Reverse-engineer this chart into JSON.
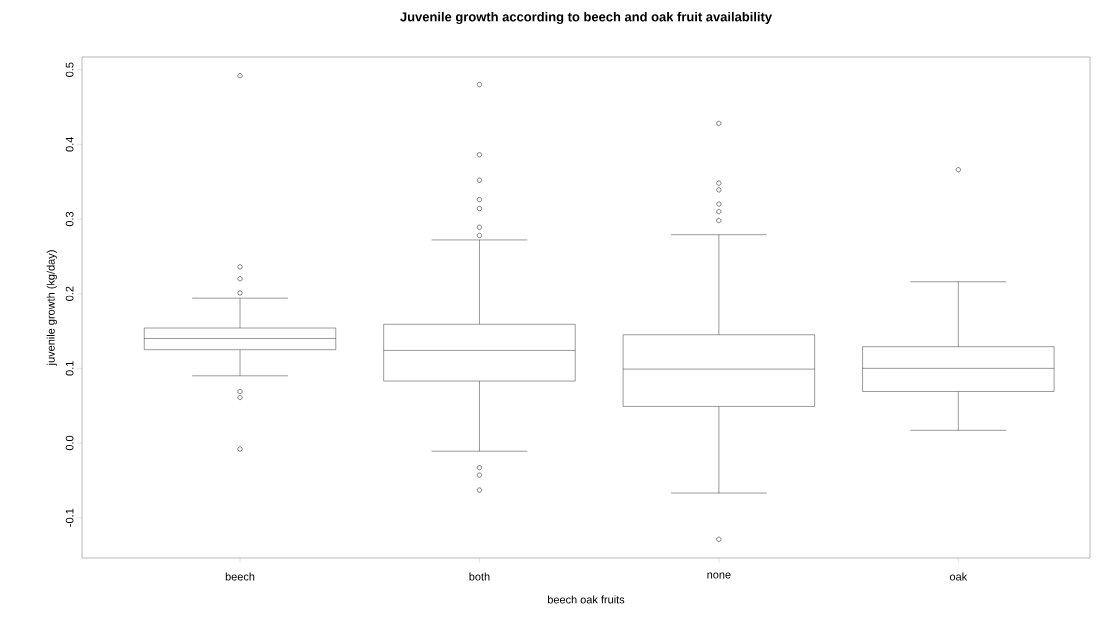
{
  "chart_data": {
    "type": "box",
    "title": "Juvenile growth according to beech and oak fruit availability",
    "xlabel": "beech oak fruits",
    "ylabel": "juvenile growth (kg/day)",
    "categories": [
      "beech",
      "both",
      "none",
      "oak"
    ],
    "boxes": [
      {
        "low": 0.09,
        "q1": 0.125,
        "median": 0.14,
        "q3": 0.154,
        "high": 0.194,
        "outliers": [
          0.492,
          0.236,
          0.22,
          0.201,
          0.069,
          0.061,
          -0.008
        ]
      },
      {
        "low": -0.011,
        "q1": 0.083,
        "median": 0.124,
        "q3": 0.159,
        "high": 0.272,
        "outliers": [
          0.48,
          0.386,
          0.352,
          0.326,
          0.314,
          0.289,
          0.278,
          -0.033,
          -0.043,
          -0.063
        ]
      },
      {
        "low": -0.067,
        "q1": 0.049,
        "median": 0.099,
        "q3": 0.145,
        "high": 0.279,
        "outliers": [
          0.428,
          0.348,
          0.339,
          0.32,
          0.31,
          0.298,
          -0.129
        ]
      },
      {
        "low": 0.017,
        "q1": 0.069,
        "median": 0.1,
        "q3": 0.129,
        "high": 0.216,
        "outliers": [
          0.366
        ]
      }
    ],
    "color": "#000000",
    "marker": "circle",
    "ylim": [
      -0.154,
      0.517
    ],
    "yticks": [
      -0.1,
      {
        "value": 0,
        "label": "0.0"
      },
      0.1,
      0.2,
      0.3,
      0.4,
      0.5
    ]
  }
}
